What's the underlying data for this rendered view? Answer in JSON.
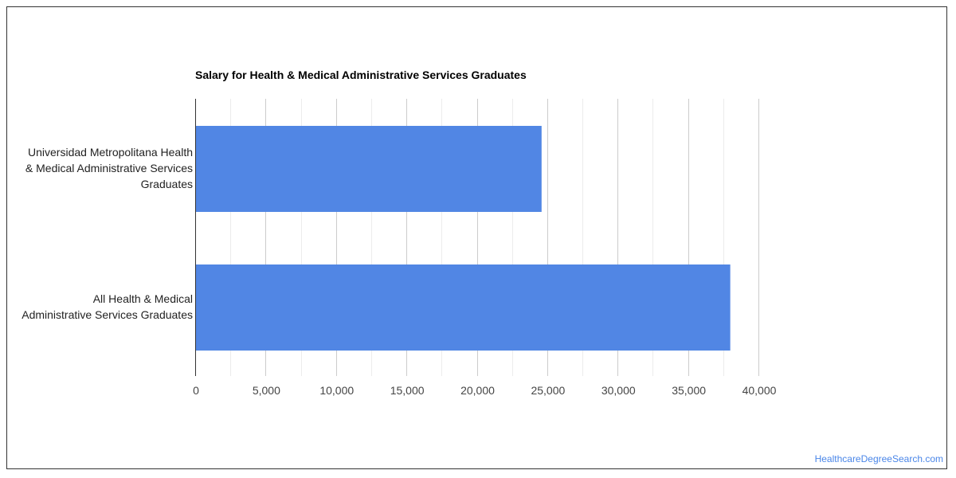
{
  "chart_data": {
    "type": "bar",
    "orientation": "horizontal",
    "title": "Salary for Health & Medical Administrative Services Graduates",
    "categories": [
      "Universidad Metropolitana Health & Medical Administrative Services Graduates",
      "All Health & Medical Administrative Services Graduates"
    ],
    "category_label_lines": [
      [
        "Universidad Metropolitana Health",
        "& Medical Administrative Services",
        "Graduates"
      ],
      [
        "All Health & Medical",
        "Administrative Services Graduates"
      ]
    ],
    "values": [
      24600,
      38000
    ],
    "xlim": [
      0,
      40000
    ],
    "x_ticks": [
      0,
      5000,
      10000,
      15000,
      20000,
      25000,
      30000,
      35000,
      40000
    ],
    "x_tick_labels": [
      "0",
      "5,000",
      "10,000",
      "15,000",
      "20,000",
      "25,000",
      "30,000",
      "35,000",
      "40,000"
    ],
    "grid": true,
    "legend": "none",
    "bar_color": "#5186e4",
    "xlabel": "",
    "ylabel": ""
  },
  "watermark": "HealthcareDegreeSearch.com"
}
